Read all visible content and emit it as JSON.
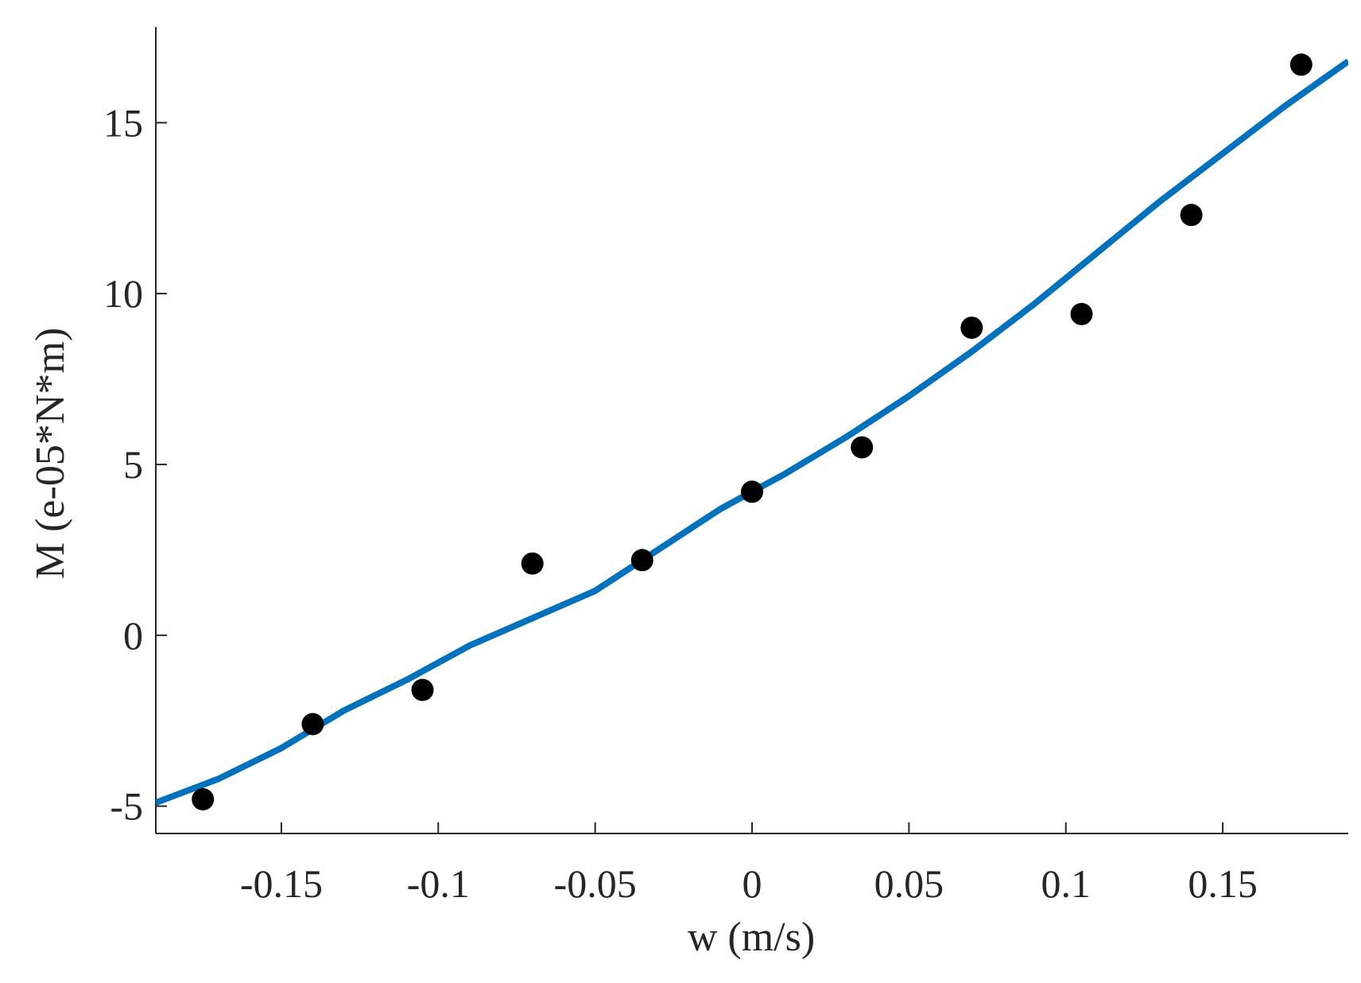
{
  "chart_data": {
    "type": "scatter",
    "title": "",
    "xlabel": "w (m/s)",
    "ylabel": "M (e-05*N*m)",
    "xlim": [
      -0.19,
      0.19
    ],
    "ylim": [
      -5.8,
      17.8
    ],
    "xticks": [
      -0.15,
      -0.1,
      -0.05,
      0,
      0.05,
      0.1,
      0.15
    ],
    "xtick_labels": [
      "-0.15",
      "-0.1",
      "-0.05",
      "0",
      "0.05",
      "0.1",
      "0.15"
    ],
    "yticks": [
      -5,
      0,
      5,
      10,
      15
    ],
    "ytick_labels": [
      "-5",
      "0",
      "5",
      "10",
      "15"
    ],
    "grid": false,
    "legend": "none",
    "series": [
      {
        "kind": "scatter",
        "color": "#000000",
        "points": [
          {
            "x": -0.175,
            "y": -4.8
          },
          {
            "x": -0.14,
            "y": -2.6
          },
          {
            "x": -0.105,
            "y": -1.6
          },
          {
            "x": -0.07,
            "y": 2.1
          },
          {
            "x": -0.035,
            "y": 2.2
          },
          {
            "x": 0.0,
            "y": 4.2
          },
          {
            "x": 0.035,
            "y": 5.5
          },
          {
            "x": 0.07,
            "y": 9.0
          },
          {
            "x": 0.105,
            "y": 9.4
          },
          {
            "x": 0.14,
            "y": 12.3
          },
          {
            "x": 0.175,
            "y": 16.7
          }
        ]
      },
      {
        "kind": "line",
        "color": "#0072BD",
        "points": [
          {
            "x": -0.19,
            "y": -4.9
          },
          {
            "x": -0.17,
            "y": -4.2
          },
          {
            "x": -0.15,
            "y": -3.3
          },
          {
            "x": -0.13,
            "y": -2.2
          },
          {
            "x": -0.11,
            "y": -1.3
          },
          {
            "x": -0.09,
            "y": -0.3
          },
          {
            "x": -0.07,
            "y": 0.5
          },
          {
            "x": -0.05,
            "y": 1.3
          },
          {
            "x": -0.03,
            "y": 2.5
          },
          {
            "x": -0.01,
            "y": 3.7
          },
          {
            "x": 0.01,
            "y": 4.7
          },
          {
            "x": 0.03,
            "y": 5.8
          },
          {
            "x": 0.05,
            "y": 7.0
          },
          {
            "x": 0.07,
            "y": 8.3
          },
          {
            "x": 0.09,
            "y": 9.7
          },
          {
            "x": 0.11,
            "y": 11.2
          },
          {
            "x": 0.13,
            "y": 12.7
          },
          {
            "x": 0.15,
            "y": 14.1
          },
          {
            "x": 0.17,
            "y": 15.5
          },
          {
            "x": 0.19,
            "y": 16.8
          }
        ]
      }
    ]
  }
}
